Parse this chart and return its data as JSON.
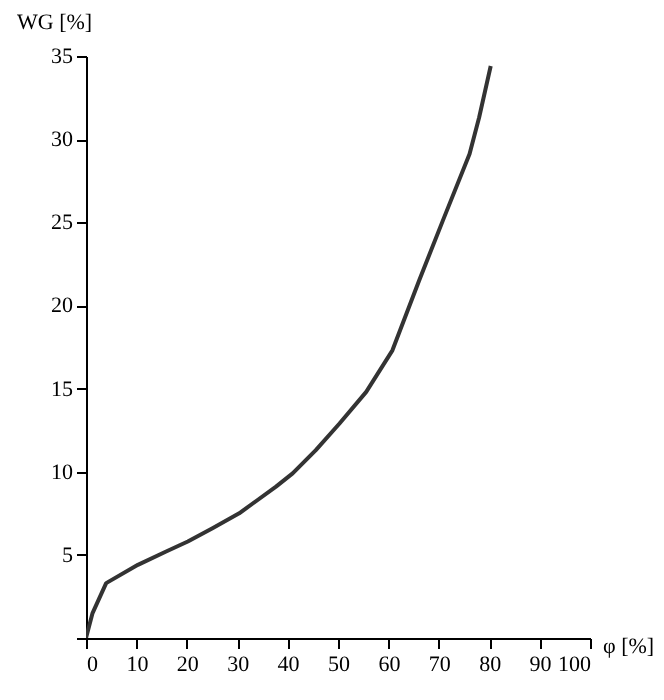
{
  "chart_data": {
    "type": "line",
    "xlabel": "φ [%]",
    "ylabel": "WG [%]",
    "x": [
      0,
      1.3,
      4,
      10.3,
      15.9,
      20.2,
      25.1,
      30.4,
      37.7,
      41,
      45.6,
      50.3,
      55.6,
      60.8,
      66.1,
      70.8,
      76.1,
      78,
      80.3
    ],
    "series": [
      {
        "color": "#333333",
        "values": [
          0,
          1.5,
          3.3,
          4.4,
          5.2,
          5.8,
          6.6,
          7.5,
          9.1,
          9.9,
          11.3,
          12.9,
          14.8,
          17.3,
          21.5,
          25.1,
          29.1,
          31.3,
          34.4
        ]
      }
    ],
    "xlim": [
      0,
      100
    ],
    "xticks": [
      0,
      10,
      20,
      30,
      40,
      50,
      60,
      70,
      80,
      90,
      100
    ],
    "ylim": [
      0,
      35
    ],
    "yticks": [
      {
        "value": 0,
        "label": null
      },
      5,
      10,
      15,
      20,
      25,
      30,
      35
    ],
    "grid": false,
    "legend": false
  }
}
